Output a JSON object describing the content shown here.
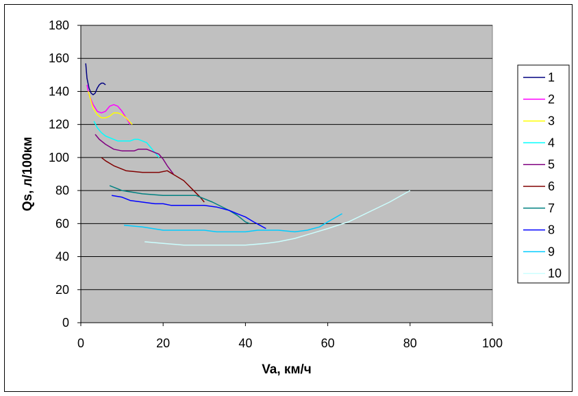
{
  "chart_data": {
    "type": "line",
    "xlabel": "Va, км/ч",
    "ylabel": "Qs, л/100км",
    "xlim": [
      0,
      100
    ],
    "ylim": [
      0,
      180
    ],
    "x_ticks": [
      0,
      20,
      40,
      60,
      80,
      100
    ],
    "y_ticks": [
      0,
      20,
      40,
      60,
      80,
      100,
      120,
      140,
      160,
      180
    ],
    "grid": "horizontal",
    "legend_position": "right",
    "plot_background": "#c0c0c0",
    "series": [
      {
        "name": "1",
        "color": "#000080",
        "x": [
          1.2,
          1.5,
          2,
          2.5,
          3,
          3.5,
          4,
          4.5,
          5,
          5.5,
          6
        ],
        "y": [
          157,
          148,
          142,
          139,
          138,
          139,
          142,
          144,
          145,
          145,
          144
        ]
      },
      {
        "name": "2",
        "color": "#ff00ff",
        "x": [
          1.5,
          2,
          3,
          4,
          5,
          6,
          7,
          8,
          9,
          10,
          11,
          12
        ],
        "y": [
          144,
          138,
          132,
          128,
          127,
          128,
          131,
          132,
          131,
          128,
          124,
          120
        ]
      },
      {
        "name": "3",
        "color": "#ffff00",
        "x": [
          1.8,
          2.5,
          3,
          4,
          5,
          6,
          7,
          8,
          9,
          10,
          11,
          12.5
        ],
        "y": [
          140,
          134,
          130,
          126,
          124,
          124,
          125,
          127,
          127,
          126,
          124,
          120
        ]
      },
      {
        "name": "4",
        "color": "#00ffff",
        "x": [
          3.2,
          4,
          5,
          6,
          7,
          8,
          9,
          10,
          11,
          12,
          13,
          14,
          15,
          16,
          17,
          18,
          19
        ],
        "y": [
          122,
          118,
          115,
          113,
          112,
          111,
          110,
          110,
          110,
          110,
          111,
          111,
          110,
          109,
          106,
          103,
          100
        ]
      },
      {
        "name": "5",
        "color": "#800080",
        "x": [
          3.5,
          4.5,
          6,
          8,
          10,
          12,
          13,
          14,
          15,
          16,
          17,
          18,
          19,
          20,
          21,
          22.5
        ],
        "y": [
          114,
          111,
          108,
          105,
          104,
          104,
          104,
          105,
          105,
          105,
          104,
          103,
          102,
          99,
          95,
          90
        ]
      },
      {
        "name": "6",
        "color": "#800000",
        "x": [
          5,
          6,
          8,
          11,
          15,
          19,
          21,
          23,
          25,
          27,
          29,
          30
        ],
        "y": [
          100,
          98,
          95,
          92,
          91,
          91,
          92,
          89,
          86,
          81,
          76,
          73
        ]
      },
      {
        "name": "7",
        "color": "#008080",
        "x": [
          7,
          10,
          15,
          20,
          28,
          32,
          36,
          38,
          39,
          40,
          41
        ],
        "y": [
          83,
          80,
          78,
          77,
          77,
          73,
          68,
          65,
          63,
          61,
          60
        ]
      },
      {
        "name": "8",
        "color": "#0000ff",
        "x": [
          7.5,
          10,
          12,
          15,
          18,
          20,
          22,
          25,
          30,
          33,
          36,
          38,
          40,
          42,
          45
        ],
        "y": [
          77,
          76,
          74,
          73,
          72,
          72,
          71,
          71,
          71,
          70,
          68,
          66,
          64,
          61,
          57
        ]
      },
      {
        "name": "9",
        "color": "#00ccff",
        "x": [
          10.5,
          15,
          20,
          25,
          30,
          33,
          40,
          43,
          48,
          52,
          55,
          58,
          60,
          63.5
        ],
        "y": [
          59,
          58,
          56,
          56,
          56,
          55,
          55,
          56,
          56,
          55,
          56,
          58,
          61,
          66
        ]
      },
      {
        "name": "10",
        "color": "#ccffff",
        "x": [
          15.5,
          20,
          25,
          30,
          35,
          40,
          45,
          48,
          52,
          56,
          60,
          65,
          70,
          75,
          80
        ],
        "y": [
          49,
          48,
          47,
          47,
          47,
          47,
          48,
          49,
          51,
          54,
          57,
          61,
          67,
          73,
          80
        ]
      }
    ]
  }
}
